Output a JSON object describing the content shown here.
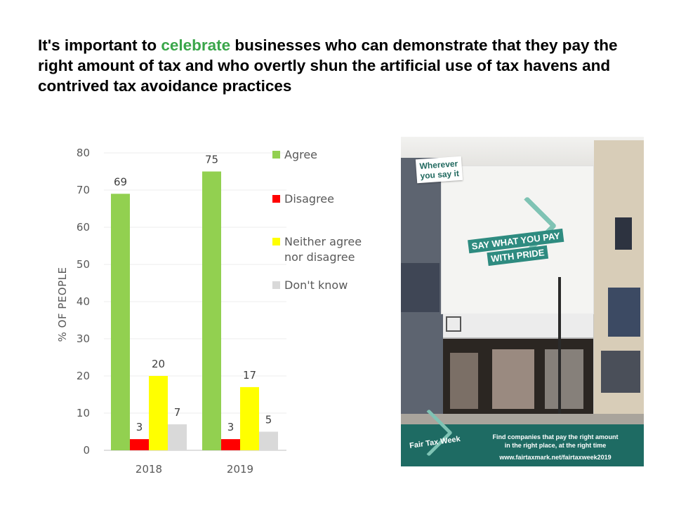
{
  "title": {
    "before": "It's important to ",
    "highlight": "celebrate",
    "after": " businesses who can demonstrate that they pay the right amount of tax and who overtly shun the artificial use of tax havens and contrived tax avoidance practices"
  },
  "colors": {
    "agree": "#92d050",
    "disagree": "#ff0000",
    "neither": "#ffff00",
    "dont_know": "#d9d9d9",
    "highlight": "#3aa64a"
  },
  "chart_data": {
    "type": "bar",
    "categories": [
      "2018",
      "2019"
    ],
    "series": [
      {
        "name": "Agree",
        "values": [
          69,
          75
        ]
      },
      {
        "name": "Disagree",
        "values": [
          3,
          3
        ]
      },
      {
        "name": "Neither agree nor disagree",
        "values": [
          20,
          17
        ]
      },
      {
        "name": "Don't know",
        "values": [
          7,
          5
        ]
      }
    ],
    "legend_lines": [
      [
        "Agree"
      ],
      [
        "Disagree"
      ],
      [
        "Neither agree",
        "nor disagree"
      ],
      [
        "Don't know"
      ]
    ],
    "ylabel": "% OF PEOPLE",
    "xlabel": "",
    "ylim": [
      0,
      80
    ],
    "yticks": [
      0,
      10,
      20,
      30,
      40,
      50,
      60,
      70,
      80
    ],
    "grid": true,
    "legend_position": "right"
  },
  "poster": {
    "tag_line1": "Wherever",
    "tag_line2": "you say it",
    "headline1": "SAY WHAT YOU PAY",
    "headline2": "WITH PRIDE",
    "footer_brand": "Fair Tax Week",
    "footer_line1": "Find companies that pay the right amount",
    "footer_line2": "in the right place, at the right time",
    "footer_url": "www.fairtaxmark.net/fairtaxweek2019"
  }
}
